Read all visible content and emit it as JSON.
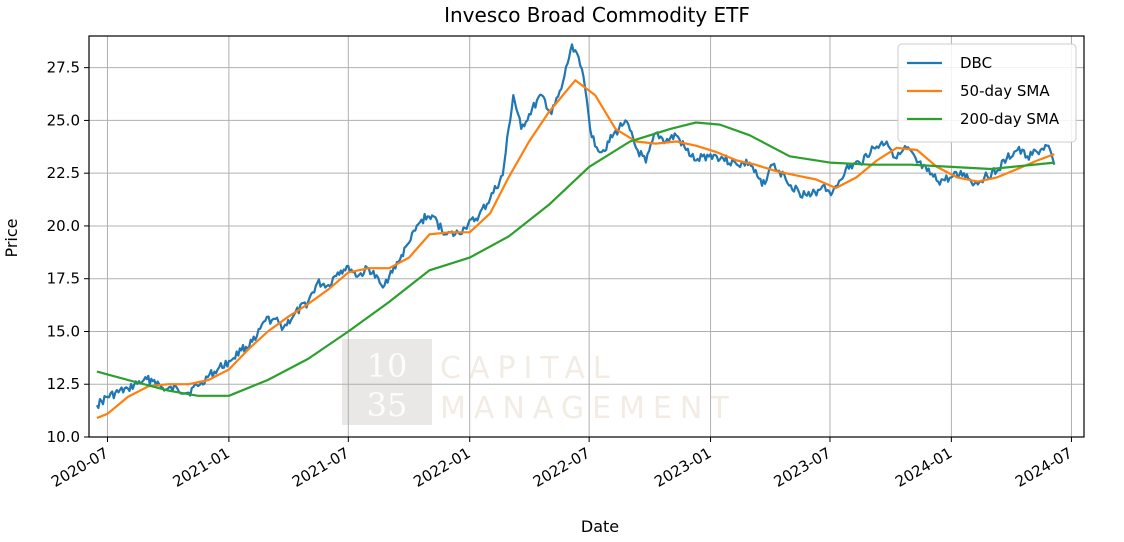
{
  "chart_data": {
    "type": "line",
    "title": "Invesco Broad Commodity ETF",
    "xlabel": "Date",
    "ylabel": "Price",
    "ylim": [
      10.0,
      29.0
    ],
    "xlim": [
      "2020-06-03",
      "2024-07-20"
    ],
    "grid": true,
    "legend": "top-right",
    "x_ticks": [
      "2020-07",
      "2021-01",
      "2021-07",
      "2022-01",
      "2022-07",
      "2023-01",
      "2023-07",
      "2024-01",
      "2024-07"
    ],
    "y_ticks": [
      "10.0",
      "12.5",
      "15.0",
      "17.5",
      "20.0",
      "22.5",
      "25.0",
      "27.5"
    ],
    "watermark": {
      "num_top": "10",
      "num_bottom": "35",
      "word_top": "CAPITAL",
      "word_bottom": "MANAGEMENT"
    },
    "series": [
      {
        "name": "DBC",
        "color": "#1f77b4",
        "points": [
          [
            "2020-06-15",
            11.5
          ],
          [
            "2020-07-01",
            11.9
          ],
          [
            "2020-08-01",
            12.3
          ],
          [
            "2020-08-25",
            12.7
          ],
          [
            "2020-09-10",
            12.7
          ],
          [
            "2020-09-25",
            12.2
          ],
          [
            "2020-10-15",
            12.3
          ],
          [
            "2020-11-01",
            12.1
          ],
          [
            "2020-11-20",
            12.6
          ],
          [
            "2020-12-10",
            13.1
          ],
          [
            "2021-01-01",
            13.6
          ],
          [
            "2021-01-20",
            14.1
          ],
          [
            "2021-02-10",
            14.6
          ],
          [
            "2021-02-25",
            15.5
          ],
          [
            "2021-03-10",
            15.6
          ],
          [
            "2021-03-25",
            15.2
          ],
          [
            "2021-04-10",
            15.8
          ],
          [
            "2021-05-01",
            16.4
          ],
          [
            "2021-05-15",
            17.3
          ],
          [
            "2021-06-01",
            17.2
          ],
          [
            "2021-06-15",
            17.8
          ],
          [
            "2021-07-01",
            18.1
          ],
          [
            "2021-07-15",
            17.6
          ],
          [
            "2021-08-01",
            18.0
          ],
          [
            "2021-08-20",
            17.2
          ],
          [
            "2021-09-01",
            17.6
          ],
          [
            "2021-09-15",
            18.3
          ],
          [
            "2021-10-01",
            19.2
          ],
          [
            "2021-10-20",
            20.3
          ],
          [
            "2021-11-05",
            20.5
          ],
          [
            "2021-11-25",
            19.6
          ],
          [
            "2021-12-10",
            19.6
          ],
          [
            "2021-12-25",
            19.9
          ],
          [
            "2022-01-15",
            20.5
          ],
          [
            "2022-02-01",
            21.3
          ],
          [
            "2022-02-20",
            22.4
          ],
          [
            "2022-03-08",
            26.2
          ],
          [
            "2022-03-20",
            24.6
          ],
          [
            "2022-04-01",
            25.3
          ],
          [
            "2022-04-20",
            26.2
          ],
          [
            "2022-05-05",
            25.3
          ],
          [
            "2022-05-20",
            26.5
          ],
          [
            "2022-06-05",
            28.6
          ],
          [
            "2022-06-15",
            28.0
          ],
          [
            "2022-06-25",
            26.5
          ],
          [
            "2022-07-05",
            24.2
          ],
          [
            "2022-07-20",
            23.5
          ],
          [
            "2022-08-05",
            24.2
          ],
          [
            "2022-08-25",
            25.0
          ],
          [
            "2022-09-10",
            23.7
          ],
          [
            "2022-09-25",
            23.0
          ],
          [
            "2022-10-10",
            24.4
          ],
          [
            "2022-10-25",
            24.0
          ],
          [
            "2022-11-10",
            24.3
          ],
          [
            "2022-11-25",
            23.6
          ],
          [
            "2022-12-10",
            23.1
          ],
          [
            "2023-01-01",
            23.4
          ],
          [
            "2023-01-20",
            23.2
          ],
          [
            "2023-02-10",
            22.9
          ],
          [
            "2023-03-01",
            23.0
          ],
          [
            "2023-03-20",
            21.9
          ],
          [
            "2023-04-05",
            22.9
          ],
          [
            "2023-04-25",
            22.2
          ],
          [
            "2023-05-15",
            21.6
          ],
          [
            "2023-06-01",
            21.4
          ],
          [
            "2023-06-20",
            21.9
          ],
          [
            "2023-07-05",
            21.6
          ],
          [
            "2023-07-25",
            22.7
          ],
          [
            "2023-08-15",
            23.0
          ],
          [
            "2023-09-05",
            23.7
          ],
          [
            "2023-09-25",
            24.0
          ],
          [
            "2023-10-10",
            23.2
          ],
          [
            "2023-10-25",
            23.7
          ],
          [
            "2023-11-10",
            23.0
          ],
          [
            "2023-11-25",
            22.6
          ],
          [
            "2023-12-12",
            22.1
          ],
          [
            "2024-01-01",
            22.3
          ],
          [
            "2024-01-20",
            22.5
          ],
          [
            "2024-02-05",
            22.0
          ],
          [
            "2024-02-20",
            22.3
          ],
          [
            "2024-03-10",
            22.6
          ],
          [
            "2024-03-25",
            23.2
          ],
          [
            "2024-04-10",
            23.6
          ],
          [
            "2024-04-25",
            23.3
          ],
          [
            "2024-05-10",
            23.5
          ],
          [
            "2024-05-25",
            23.8
          ],
          [
            "2024-06-05",
            22.9
          ]
        ]
      },
      {
        "name": "50-day SMA",
        "color": "#ff7f0e",
        "points": [
          [
            "2020-06-15",
            10.9
          ],
          [
            "2020-07-01",
            11.1
          ],
          [
            "2020-08-01",
            11.9
          ],
          [
            "2020-09-01",
            12.4
          ],
          [
            "2020-10-01",
            12.5
          ],
          [
            "2020-11-01",
            12.5
          ],
          [
            "2020-12-01",
            12.7
          ],
          [
            "2021-01-01",
            13.2
          ],
          [
            "2021-02-01",
            14.2
          ],
          [
            "2021-03-01",
            15.0
          ],
          [
            "2021-04-01",
            15.7
          ],
          [
            "2021-05-01",
            16.3
          ],
          [
            "2021-06-01",
            17.0
          ],
          [
            "2021-07-01",
            17.8
          ],
          [
            "2021-08-01",
            18.0
          ],
          [
            "2021-09-01",
            18.0
          ],
          [
            "2021-10-01",
            18.5
          ],
          [
            "2021-11-01",
            19.6
          ],
          [
            "2021-12-01",
            19.7
          ],
          [
            "2022-01-01",
            19.7
          ],
          [
            "2022-02-01",
            20.6
          ],
          [
            "2022-03-01",
            22.3
          ],
          [
            "2022-04-01",
            24.0
          ],
          [
            "2022-05-01",
            25.4
          ],
          [
            "2022-06-10",
            26.9
          ],
          [
            "2022-07-10",
            26.2
          ],
          [
            "2022-08-10",
            24.6
          ],
          [
            "2022-09-10",
            24.0
          ],
          [
            "2022-10-10",
            23.9
          ],
          [
            "2022-11-10",
            24.0
          ],
          [
            "2022-12-10",
            23.8
          ],
          [
            "2023-01-10",
            23.5
          ],
          [
            "2023-02-10",
            23.1
          ],
          [
            "2023-03-10",
            22.9
          ],
          [
            "2023-04-10",
            22.6
          ],
          [
            "2023-05-10",
            22.4
          ],
          [
            "2023-06-10",
            22.2
          ],
          [
            "2023-07-10",
            21.8
          ],
          [
            "2023-08-10",
            22.3
          ],
          [
            "2023-09-10",
            23.1
          ],
          [
            "2023-10-10",
            23.7
          ],
          [
            "2023-11-10",
            23.6
          ],
          [
            "2023-12-10",
            22.8
          ],
          [
            "2024-01-10",
            22.3
          ],
          [
            "2024-02-10",
            22.1
          ],
          [
            "2024-03-10",
            22.3
          ],
          [
            "2024-04-10",
            22.7
          ],
          [
            "2024-05-10",
            23.1
          ],
          [
            "2024-06-05",
            23.4
          ]
        ]
      },
      {
        "name": "200-day SMA",
        "color": "#2ca02c",
        "points": [
          [
            "2020-06-15",
            13.1
          ],
          [
            "2020-08-01",
            12.7
          ],
          [
            "2020-10-01",
            12.2
          ],
          [
            "2020-11-15",
            11.95
          ],
          [
            "2021-01-01",
            11.95
          ],
          [
            "2021-03-01",
            12.7
          ],
          [
            "2021-05-01",
            13.7
          ],
          [
            "2021-07-01",
            15.0
          ],
          [
            "2021-09-01",
            16.4
          ],
          [
            "2021-11-01",
            17.9
          ],
          [
            "2022-01-01",
            18.5
          ],
          [
            "2022-03-01",
            19.5
          ],
          [
            "2022-05-01",
            21.0
          ],
          [
            "2022-07-01",
            22.8
          ],
          [
            "2022-09-01",
            24.0
          ],
          [
            "2022-11-01",
            24.6
          ],
          [
            "2022-12-10",
            24.9
          ],
          [
            "2023-01-15",
            24.8
          ],
          [
            "2023-03-01",
            24.3
          ],
          [
            "2023-05-01",
            23.3
          ],
          [
            "2023-07-01",
            23.0
          ],
          [
            "2023-09-01",
            22.9
          ],
          [
            "2023-11-01",
            22.9
          ],
          [
            "2024-01-01",
            22.8
          ],
          [
            "2024-03-01",
            22.7
          ],
          [
            "2024-06-05",
            23.0
          ]
        ]
      }
    ]
  }
}
